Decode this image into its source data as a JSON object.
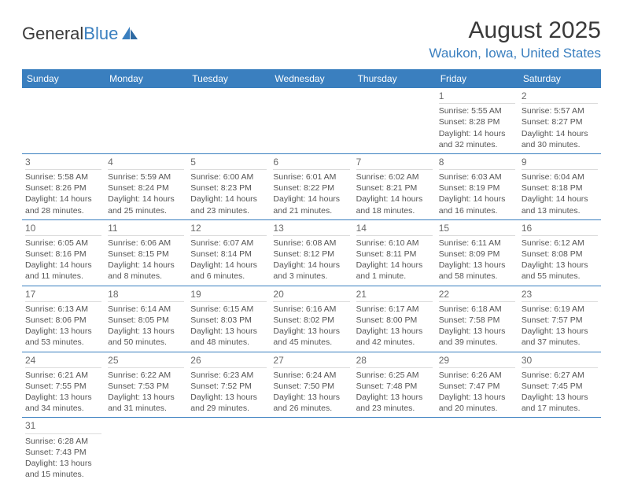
{
  "logo": {
    "part1": "General",
    "part2": "Blue"
  },
  "title": "August 2025",
  "location": "Waukon, Iowa, United States",
  "colors": {
    "accent": "#3a7fbf",
    "text": "#3a3a3a",
    "muted": "#555555",
    "divider": "#dcdcdc",
    "background": "#ffffff"
  },
  "font": {
    "family": "Arial",
    "title_size": 30,
    "location_size": 17,
    "dow_size": 12,
    "daynum_size": 12,
    "body_size": 10.5
  },
  "dow": [
    "Sunday",
    "Monday",
    "Tuesday",
    "Wednesday",
    "Thursday",
    "Friday",
    "Saturday"
  ],
  "weeks": [
    [
      {
        "n": "",
        "sr": "",
        "ss": "",
        "d1": "",
        "d2": ""
      },
      {
        "n": "",
        "sr": "",
        "ss": "",
        "d1": "",
        "d2": ""
      },
      {
        "n": "",
        "sr": "",
        "ss": "",
        "d1": "",
        "d2": ""
      },
      {
        "n": "",
        "sr": "",
        "ss": "",
        "d1": "",
        "d2": ""
      },
      {
        "n": "",
        "sr": "",
        "ss": "",
        "d1": "",
        "d2": ""
      },
      {
        "n": "1",
        "sr": "Sunrise: 5:55 AM",
        "ss": "Sunset: 8:28 PM",
        "d1": "Daylight: 14 hours",
        "d2": "and 32 minutes."
      },
      {
        "n": "2",
        "sr": "Sunrise: 5:57 AM",
        "ss": "Sunset: 8:27 PM",
        "d1": "Daylight: 14 hours",
        "d2": "and 30 minutes."
      }
    ],
    [
      {
        "n": "3",
        "sr": "Sunrise: 5:58 AM",
        "ss": "Sunset: 8:26 PM",
        "d1": "Daylight: 14 hours",
        "d2": "and 28 minutes."
      },
      {
        "n": "4",
        "sr": "Sunrise: 5:59 AM",
        "ss": "Sunset: 8:24 PM",
        "d1": "Daylight: 14 hours",
        "d2": "and 25 minutes."
      },
      {
        "n": "5",
        "sr": "Sunrise: 6:00 AM",
        "ss": "Sunset: 8:23 PM",
        "d1": "Daylight: 14 hours",
        "d2": "and 23 minutes."
      },
      {
        "n": "6",
        "sr": "Sunrise: 6:01 AM",
        "ss": "Sunset: 8:22 PM",
        "d1": "Daylight: 14 hours",
        "d2": "and 21 minutes."
      },
      {
        "n": "7",
        "sr": "Sunrise: 6:02 AM",
        "ss": "Sunset: 8:21 PM",
        "d1": "Daylight: 14 hours",
        "d2": "and 18 minutes."
      },
      {
        "n": "8",
        "sr": "Sunrise: 6:03 AM",
        "ss": "Sunset: 8:19 PM",
        "d1": "Daylight: 14 hours",
        "d2": "and 16 minutes."
      },
      {
        "n": "9",
        "sr": "Sunrise: 6:04 AM",
        "ss": "Sunset: 8:18 PM",
        "d1": "Daylight: 14 hours",
        "d2": "and 13 minutes."
      }
    ],
    [
      {
        "n": "10",
        "sr": "Sunrise: 6:05 AM",
        "ss": "Sunset: 8:16 PM",
        "d1": "Daylight: 14 hours",
        "d2": "and 11 minutes."
      },
      {
        "n": "11",
        "sr": "Sunrise: 6:06 AM",
        "ss": "Sunset: 8:15 PM",
        "d1": "Daylight: 14 hours",
        "d2": "and 8 minutes."
      },
      {
        "n": "12",
        "sr": "Sunrise: 6:07 AM",
        "ss": "Sunset: 8:14 PM",
        "d1": "Daylight: 14 hours",
        "d2": "and 6 minutes."
      },
      {
        "n": "13",
        "sr": "Sunrise: 6:08 AM",
        "ss": "Sunset: 8:12 PM",
        "d1": "Daylight: 14 hours",
        "d2": "and 3 minutes."
      },
      {
        "n": "14",
        "sr": "Sunrise: 6:10 AM",
        "ss": "Sunset: 8:11 PM",
        "d1": "Daylight: 14 hours",
        "d2": "and 1 minute."
      },
      {
        "n": "15",
        "sr": "Sunrise: 6:11 AM",
        "ss": "Sunset: 8:09 PM",
        "d1": "Daylight: 13 hours",
        "d2": "and 58 minutes."
      },
      {
        "n": "16",
        "sr": "Sunrise: 6:12 AM",
        "ss": "Sunset: 8:08 PM",
        "d1": "Daylight: 13 hours",
        "d2": "and 55 minutes."
      }
    ],
    [
      {
        "n": "17",
        "sr": "Sunrise: 6:13 AM",
        "ss": "Sunset: 8:06 PM",
        "d1": "Daylight: 13 hours",
        "d2": "and 53 minutes."
      },
      {
        "n": "18",
        "sr": "Sunrise: 6:14 AM",
        "ss": "Sunset: 8:05 PM",
        "d1": "Daylight: 13 hours",
        "d2": "and 50 minutes."
      },
      {
        "n": "19",
        "sr": "Sunrise: 6:15 AM",
        "ss": "Sunset: 8:03 PM",
        "d1": "Daylight: 13 hours",
        "d2": "and 48 minutes."
      },
      {
        "n": "20",
        "sr": "Sunrise: 6:16 AM",
        "ss": "Sunset: 8:02 PM",
        "d1": "Daylight: 13 hours",
        "d2": "and 45 minutes."
      },
      {
        "n": "21",
        "sr": "Sunrise: 6:17 AM",
        "ss": "Sunset: 8:00 PM",
        "d1": "Daylight: 13 hours",
        "d2": "and 42 minutes."
      },
      {
        "n": "22",
        "sr": "Sunrise: 6:18 AM",
        "ss": "Sunset: 7:58 PM",
        "d1": "Daylight: 13 hours",
        "d2": "and 39 minutes."
      },
      {
        "n": "23",
        "sr": "Sunrise: 6:19 AM",
        "ss": "Sunset: 7:57 PM",
        "d1": "Daylight: 13 hours",
        "d2": "and 37 minutes."
      }
    ],
    [
      {
        "n": "24",
        "sr": "Sunrise: 6:21 AM",
        "ss": "Sunset: 7:55 PM",
        "d1": "Daylight: 13 hours",
        "d2": "and 34 minutes."
      },
      {
        "n": "25",
        "sr": "Sunrise: 6:22 AM",
        "ss": "Sunset: 7:53 PM",
        "d1": "Daylight: 13 hours",
        "d2": "and 31 minutes."
      },
      {
        "n": "26",
        "sr": "Sunrise: 6:23 AM",
        "ss": "Sunset: 7:52 PM",
        "d1": "Daylight: 13 hours",
        "d2": "and 29 minutes."
      },
      {
        "n": "27",
        "sr": "Sunrise: 6:24 AM",
        "ss": "Sunset: 7:50 PM",
        "d1": "Daylight: 13 hours",
        "d2": "and 26 minutes."
      },
      {
        "n": "28",
        "sr": "Sunrise: 6:25 AM",
        "ss": "Sunset: 7:48 PM",
        "d1": "Daylight: 13 hours",
        "d2": "and 23 minutes."
      },
      {
        "n": "29",
        "sr": "Sunrise: 6:26 AM",
        "ss": "Sunset: 7:47 PM",
        "d1": "Daylight: 13 hours",
        "d2": "and 20 minutes."
      },
      {
        "n": "30",
        "sr": "Sunrise: 6:27 AM",
        "ss": "Sunset: 7:45 PM",
        "d1": "Daylight: 13 hours",
        "d2": "and 17 minutes."
      }
    ],
    [
      {
        "n": "31",
        "sr": "Sunrise: 6:28 AM",
        "ss": "Sunset: 7:43 PM",
        "d1": "Daylight: 13 hours",
        "d2": "and 15 minutes."
      },
      {
        "n": "",
        "sr": "",
        "ss": "",
        "d1": "",
        "d2": ""
      },
      {
        "n": "",
        "sr": "",
        "ss": "",
        "d1": "",
        "d2": ""
      },
      {
        "n": "",
        "sr": "",
        "ss": "",
        "d1": "",
        "d2": ""
      },
      {
        "n": "",
        "sr": "",
        "ss": "",
        "d1": "",
        "d2": ""
      },
      {
        "n": "",
        "sr": "",
        "ss": "",
        "d1": "",
        "d2": ""
      },
      {
        "n": "",
        "sr": "",
        "ss": "",
        "d1": "",
        "d2": ""
      }
    ]
  ]
}
